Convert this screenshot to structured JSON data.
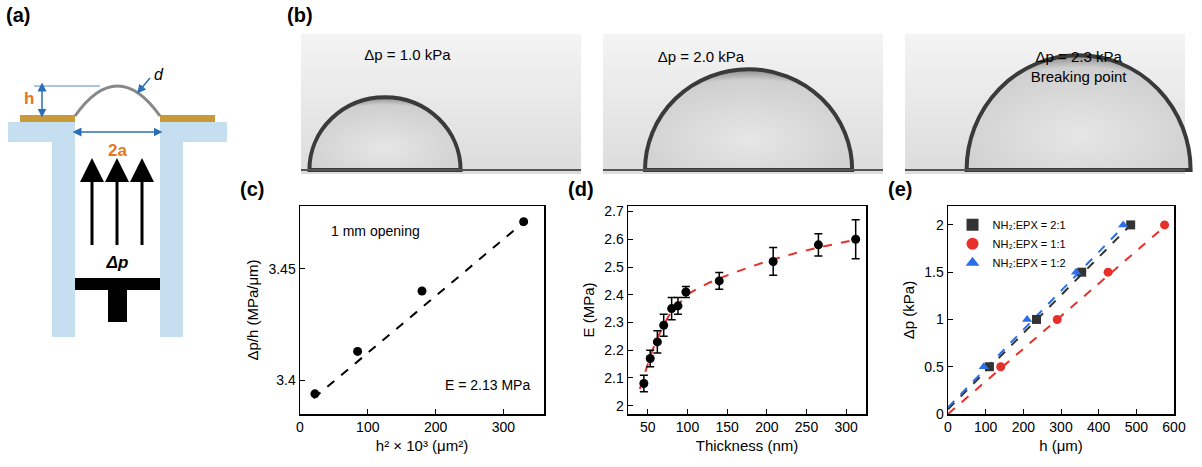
{
  "panels": {
    "a": {
      "letter": "(a)",
      "labels": {
        "h": "h",
        "d": "d",
        "width": "2a",
        "pressure": "Δp"
      }
    },
    "b": {
      "letter": "(b)",
      "images": [
        {
          "label": "Δp = 1.0 kPa"
        },
        {
          "label": "Δp = 2.0 kPa"
        },
        {
          "label": "Δp = 2.3 kPa",
          "note": "Breaking point"
        }
      ]
    }
  },
  "chart_data": [
    {
      "panel": "(c)",
      "type": "scatter",
      "x_label": "h² × 10³ (μm²)",
      "y_label": "Δp/h (MPa/μm)",
      "annotations": [
        "1 mm opening",
        "E = 2.13 MPa"
      ],
      "series": [
        {
          "x": [
            22,
            85,
            180,
            330
          ],
          "values": [
            3.394,
            3.413,
            3.44,
            3.471
          ],
          "color": "#000000",
          "marker": "circle"
        },
        {
          "type": "line",
          "x": [
            20,
            335
          ],
          "values": [
            3.392,
            3.472
          ],
          "color": "#000000",
          "line_style": "dashed"
        }
      ],
      "xlim": [
        0,
        360
      ],
      "xticks": [
        0,
        100,
        200,
        300
      ],
      "ylim": [
        3.385,
        3.478
      ],
      "yticks": [
        3.4,
        3.45
      ],
      "grid": false
    },
    {
      "panel": "(d)",
      "type": "scatter",
      "x_label": "Thickness (nm)",
      "y_label": "E (MPa)",
      "series": [
        {
          "x": [
            45,
            53,
            62,
            70,
            80,
            88,
            98,
            140,
            208,
            265,
            312
          ],
          "values": [
            2.08,
            2.17,
            2.23,
            2.29,
            2.35,
            2.36,
            2.41,
            2.45,
            2.52,
            2.58,
            2.6
          ],
          "error": [
            0.03,
            0.03,
            0.04,
            0.04,
            0.04,
            0.03,
            0.02,
            0.03,
            0.05,
            0.04,
            0.07
          ],
          "color": "#000000",
          "marker": "circle"
        },
        {
          "type": "line",
          "x": [
            40,
            50,
            60,
            70,
            80,
            90,
            100,
            125,
            150,
            200,
            250,
            315
          ],
          "values": [
            2.06,
            2.15,
            2.23,
            2.29,
            2.34,
            2.37,
            2.4,
            2.44,
            2.47,
            2.52,
            2.56,
            2.6
          ],
          "color": "#e8302a",
          "line_style": "dashed"
        }
      ],
      "xlim": [
        25,
        325
      ],
      "xticks": [
        50,
        100,
        150,
        200,
        250,
        300
      ],
      "ylim": [
        1.97,
        2.72
      ],
      "yticks": [
        2,
        2.1,
        2.2,
        2.3,
        2.4,
        2.5,
        2.6,
        2.7
      ],
      "grid": false
    },
    {
      "panel": "(e)",
      "type": "scatter",
      "x_label": "h (μm)",
      "y_label": "Δp (kPa)",
      "legend": "top-left",
      "series": [
        {
          "name": "NH₂:EPX = 2:1",
          "x": [
            110,
            235,
            355,
            485
          ],
          "values": [
            0.5,
            1.0,
            1.5,
            2.0
          ],
          "color": "#333333",
          "marker": "square"
        },
        {
          "name": "NH₂:EPX = 1:1",
          "x": [
            140,
            290,
            425,
            575
          ],
          "values": [
            0.5,
            1.0,
            1.5,
            2.0
          ],
          "color": "#e8302a",
          "marker": "circle"
        },
        {
          "name": "NH₂:EPX = 1:2",
          "x": [
            95,
            210,
            340,
            465
          ],
          "values": [
            0.5,
            1.0,
            1.5,
            2.0
          ],
          "color": "#2a6fe8",
          "marker": "triangle"
        },
        {
          "type": "line",
          "x": [
            0,
            490
          ],
          "values": [
            0.05,
            2.02
          ],
          "color": "#333333",
          "line_style": "dashed"
        },
        {
          "type": "line",
          "x": [
            0,
            580
          ],
          "values": [
            0.0,
            2.0
          ],
          "color": "#e8302a",
          "line_style": "dashed"
        },
        {
          "type": "line",
          "x": [
            0,
            470
          ],
          "values": [
            0.07,
            2.0
          ],
          "color": "#2a6fe8",
          "line_style": "dashed"
        }
      ],
      "xlim": [
        0,
        600
      ],
      "xticks": [
        0,
        100,
        200,
        300,
        400,
        500,
        600
      ],
      "ylim": [
        0,
        2.2
      ],
      "yticks": [
        0,
        0.5,
        1,
        1.5,
        2
      ],
      "grid": false
    }
  ]
}
